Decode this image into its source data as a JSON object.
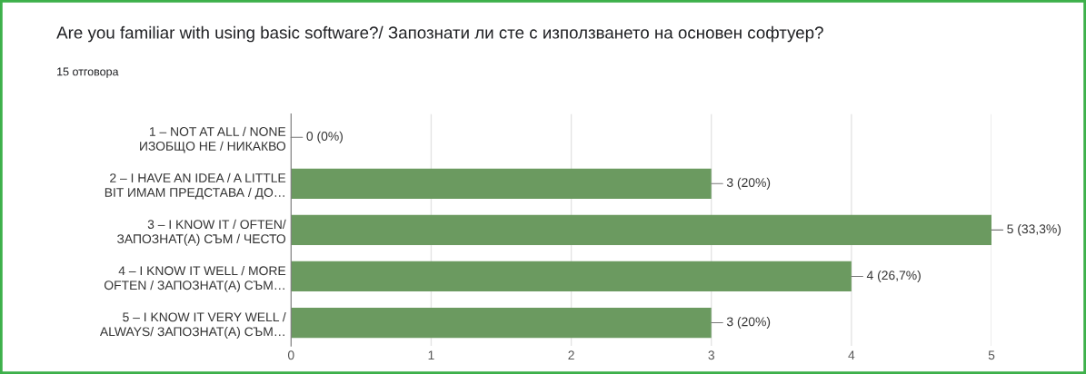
{
  "chart_data": {
    "type": "bar",
    "orientation": "horizontal",
    "title": "Are you familiar with using basic software?/ Запознати ли сте с използването на основен софтуер?",
    "subtitle": "15 отговора",
    "categories": [
      "1 – NOT AT ALL / NONE\nИЗОБЩО НЕ / НИКАКВО",
      "2 – I HAVE AN IDEA / A LITTLE\nBIT ИМАМ ПРЕДСТАВА / ДО…",
      "3 – I KNOW IT / OFTEN/\nЗАПОЗНАТ(А) СЪМ / ЧЕСТО",
      "4 – I KNOW IT WELL / MORE\nOFTEN / ЗАПОЗНАТ(А) СЪМ…",
      "5 – I KNOW IT VERY WELL /\nALWAYS/ ЗАПОЗНАТ(А) СЪМ…"
    ],
    "values": [
      0,
      3,
      5,
      4,
      3
    ],
    "value_labels": [
      "0 (0%)",
      "3 (20%)",
      "5 (33,3%)",
      "4 (26,7%)",
      "3 (20%)"
    ],
    "color": "#6b9a60",
    "xlim": [
      0,
      5
    ],
    "xticks": [
      0,
      1,
      2,
      3,
      4,
      5
    ],
    "grid": "x",
    "legend": false
  }
}
